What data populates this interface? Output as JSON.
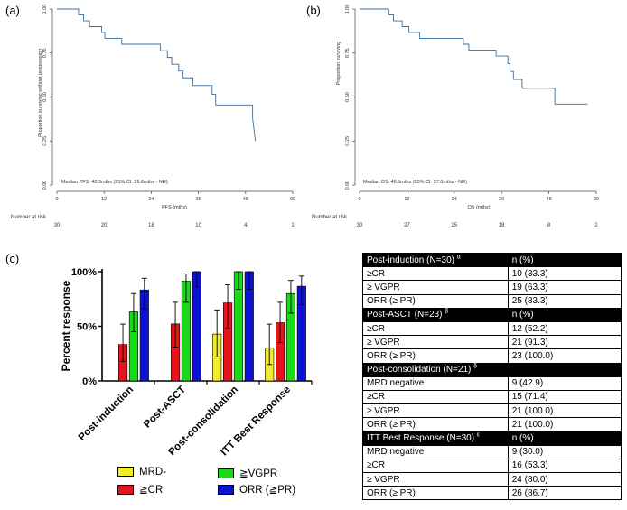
{
  "panels": {
    "a": {
      "label": "(a)",
      "ylabel": "Proportion surviving without progression",
      "xlabel": "PFS (mths)",
      "median_text": "Median PFS: 40.3mths (95% CI: 26.6mths - NR)",
      "risk_label": "Number at risk",
      "risk_counts": [
        "30",
        "20",
        "18",
        "10",
        "4",
        "1"
      ]
    },
    "b": {
      "label": "(b)",
      "ylabel": "Proportion surviving",
      "xlabel": "OS (mths)",
      "median_text": "Median OS: 49.5mths (95% CI: 37.0mths - NR)",
      "risk_label": "Number at risk",
      "risk_counts": [
        "30",
        "27",
        "25",
        "18",
        "8",
        "2"
      ]
    },
    "c": {
      "label": "(c)",
      "ylabel": "Percent response"
    }
  },
  "chart_data": [
    {
      "type": "line",
      "title": "(a)",
      "xlabel": "PFS (mths)",
      "ylabel": "Proportion surviving without progression",
      "xlim": [
        0,
        60
      ],
      "ylim": [
        0,
        1
      ],
      "xticks": [
        "0",
        "12",
        "24",
        "36",
        "48",
        "60"
      ],
      "yticks": [
        "0.00",
        "0.25",
        "0.50",
        "0.75",
        "1.00"
      ],
      "series": [
        {
          "name": "PFS",
          "x": [
            0,
            5.5,
            6.8,
            8.3,
            11.4,
            12.2,
            16.5,
            26.3,
            28.1,
            29.2,
            31.0,
            32.1,
            34.6,
            39.5,
            40.4,
            49.8
          ],
          "values": [
            1.0,
            0.967,
            0.933,
            0.9,
            0.867,
            0.833,
            0.8,
            0.763,
            0.725,
            0.686,
            0.648,
            0.609,
            0.565,
            0.515,
            0.455,
            0.38
          ]
        },
        {
          "name": "PFS tail",
          "x": [
            49.8,
            50.5
          ],
          "values": [
            0.38,
            0.25
          ]
        }
      ]
    },
    {
      "type": "line",
      "title": "(b)",
      "xlabel": "OS (mths)",
      "ylabel": "Proportion surviving",
      "xlim": [
        0,
        60
      ],
      "ylim": [
        0,
        1
      ],
      "xticks": [
        "0",
        "12",
        "24",
        "36",
        "48",
        "60"
      ],
      "yticks": [
        "0.00",
        "0.25",
        "0.50",
        "0.75",
        "1.00"
      ],
      "series": [
        {
          "name": "OS",
          "x": [
            0,
            7.4,
            8.6,
            10.8,
            12.5,
            15.2,
            26.3,
            27.7,
            34.6,
            37.6,
            38.1,
            39.0,
            41.2,
            49.5,
            57.8
          ],
          "values": [
            1.0,
            0.967,
            0.933,
            0.9,
            0.867,
            0.833,
            0.8,
            0.767,
            0.733,
            0.69,
            0.645,
            0.6,
            0.55,
            0.46,
            0.46
          ]
        }
      ]
    },
    {
      "type": "bar",
      "title": "(c)",
      "ylabel": "Percent response",
      "ylim": [
        0,
        100
      ],
      "yticks": [
        "0%",
        "50%",
        "100%"
      ],
      "categories": [
        "Post-induction",
        "Post-ASCT",
        "Post-consolidation",
        "ITT Best Response"
      ],
      "series": [
        {
          "name": "MRD-",
          "color": "#f2ec2a",
          "values": [
            null,
            null,
            42.9,
            30.0
          ],
          "err_low": [
            null,
            null,
            22,
            15
          ],
          "err_high": [
            null,
            null,
            65,
            52
          ]
        },
        {
          "name": "≧CR",
          "color": "#e8141b",
          "values": [
            33.3,
            52.2,
            71.4,
            53.3
          ],
          "err_low": [
            18,
            31,
            48,
            35
          ],
          "err_high": [
            52,
            72,
            88,
            72
          ]
        },
        {
          "name": "≧VGPR",
          "color": "#1ad81a",
          "values": [
            63.3,
            91.3,
            100.0,
            80.0
          ],
          "err_low": [
            45,
            72,
            84,
            62
          ],
          "err_high": [
            80,
            98,
            100,
            92
          ]
        },
        {
          "name": "ORR (≧PR)",
          "color": "#0b12d6",
          "values": [
            83.3,
            100.0,
            100.0,
            86.7
          ],
          "err_low": [
            66,
            86,
            84,
            70
          ],
          "err_high": [
            94,
            100,
            100,
            96
          ]
        }
      ],
      "legend": [
        "MRD-",
        "≧CR",
        "≧VGPR",
        "ORR (≧PR)"
      ]
    }
  ],
  "table": {
    "sections": [
      {
        "header": "Post-induction (N=30)",
        "sup": "α",
        "col2": "n (%)",
        "rows": [
          [
            "≥CR",
            "10 (33.3)"
          ],
          [
            "≥ VGPR",
            "19 (63.3)"
          ],
          [
            "ORR (≥ PR)",
            "25 (83.3)"
          ]
        ]
      },
      {
        "header": "Post-ASCT (N=23)",
        "sup": "β",
        "col2": "n (%)",
        "rows": [
          [
            "≥CR",
            "12 (52.2)"
          ],
          [
            "≥ VGPR",
            "21 (91.3)"
          ],
          [
            "ORR (≥ PR)",
            "23 (100.0)"
          ]
        ]
      },
      {
        "header": "Post-consolidation (N=21)",
        "sup": "δ",
        "col2": "",
        "rows": [
          [
            "MRD negative",
            "9 (42.9)"
          ],
          [
            "≥CR",
            "15 (71.4)"
          ],
          [
            "≥ VGPR",
            "21 (100.0)"
          ],
          [
            "ORR (≥ PR)",
            "21 (100.0)"
          ]
        ]
      },
      {
        "header": "ITT Best Response (N=30)",
        "sup": "ε",
        "col2": "n (%)",
        "rows": [
          [
            "MRD negative",
            "9 (30.0)"
          ],
          [
            "≥CR",
            "16 (53.3)"
          ],
          [
            "≥ VGPR",
            "24 (80.0)"
          ],
          [
            "ORR (≥ PR)",
            "26 (86.7)"
          ]
        ]
      }
    ]
  }
}
